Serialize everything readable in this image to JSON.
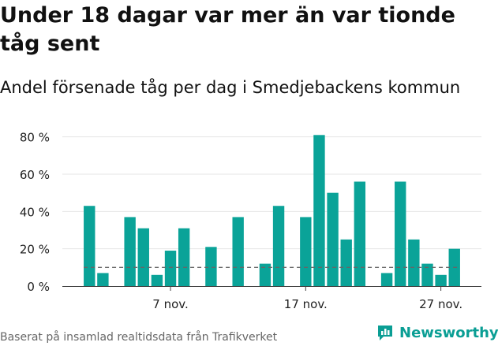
{
  "page": {
    "title": "Under 18 dagar var mer än var tionde tåg sent",
    "subtitle": "Andel försenade tåg per dag i Smedjebackens kommun",
    "source": "Baserat på insamlad realtidsdata från Trafikverket",
    "brand": "Newsworthy"
  },
  "colors": {
    "bar": "#0aa398",
    "grid": "#e4e4e4",
    "threshold": "#666666",
    "brand": "#0a9e94"
  },
  "chart_data": {
    "type": "bar",
    "x": [
      1,
      2,
      3,
      4,
      5,
      6,
      7,
      8,
      9,
      10,
      11,
      12,
      13,
      14,
      15,
      16,
      17,
      18,
      19,
      20,
      21,
      22,
      23,
      24,
      25,
      26,
      27,
      28,
      29,
      30
    ],
    "values": [
      43,
      7,
      0,
      37,
      31,
      6,
      19,
      31,
      0,
      21,
      0,
      37,
      0,
      12,
      43,
      0,
      37,
      81,
      50,
      25,
      56,
      0,
      7,
      56,
      25,
      12,
      6,
      20,
      0,
      0
    ],
    "ylim": [
      0,
      90
    ],
    "yticks": [
      0,
      20,
      40,
      60,
      80
    ],
    "ytick_labels": [
      "0 %",
      "20 %",
      "40 %",
      "60 %",
      "80 %"
    ],
    "xticks": [
      7,
      17,
      27
    ],
    "xtick_labels": [
      "7 nov.",
      "17 nov.",
      "27 nov."
    ],
    "xlim": [
      -1,
      30
    ],
    "threshold": 10,
    "grid": true,
    "xlabel": "",
    "ylabel": ""
  }
}
